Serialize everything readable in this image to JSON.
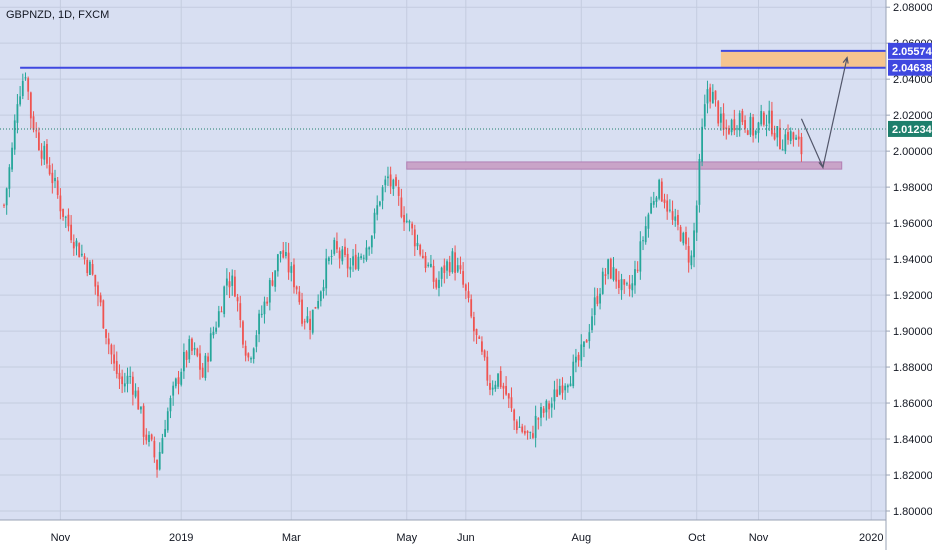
{
  "symbol_label": "GBPNZD, 1D, FXCM",
  "colors": {
    "background": "#d8dff2",
    "grid": "#c4ccdf",
    "up_candle": "#26a69a",
    "down_candle": "#ef5350",
    "resistance_line": "#3f48e0",
    "supply_zone": "#f5c48f",
    "support_zone": "#c9a4c8",
    "support_zone_border": "#b27fb4",
    "current_price_badge": "#1e7f6c",
    "level_badge": "#3f48e0",
    "projection": "#52566a"
  },
  "chart_data": {
    "type": "candlestick",
    "title": "GBPNZD, 1D, FXCM",
    "x_tick_labels": [
      "Nov",
      "2019",
      "Mar",
      "May",
      "Jun",
      "Aug",
      "Oct",
      "Nov",
      "2020"
    ],
    "y_tick_labels": [
      "1.80000",
      "1.82000",
      "1.84000",
      "1.86000",
      "1.88000",
      "1.90000",
      "1.92000",
      "1.94000",
      "1.96000",
      "1.98000",
      "2.00000",
      "2.02000",
      "2.04000",
      "2.06000",
      "2.08000"
    ],
    "ylim": [
      1.795,
      2.084
    ],
    "grid": true,
    "price_levels": [
      {
        "label": "2.05574",
        "value": 2.05574
      },
      {
        "label": "2.04638",
        "value": 2.04638
      },
      {
        "label": "2.01234",
        "value": 2.01234
      }
    ],
    "support_zone": [
      1.99,
      1.994
    ],
    "supply_zone": [
      2.04638,
      2.05574
    ],
    "close_path": [
      [
        0,
        1.97
      ],
      [
        3,
        2.0
      ],
      [
        5,
        2.03
      ],
      [
        8,
        2.045
      ],
      [
        10,
        2.02
      ],
      [
        13,
        2.005
      ],
      [
        17,
        1.99
      ],
      [
        21,
        1.97
      ],
      [
        25,
        1.955
      ],
      [
        28,
        1.945
      ],
      [
        32,
        1.935
      ],
      [
        35,
        1.92
      ],
      [
        38,
        1.9
      ],
      [
        41,
        1.88
      ],
      [
        44,
        1.87
      ],
      [
        47,
        1.875
      ],
      [
        50,
        1.86
      ],
      [
        52,
        1.845
      ],
      [
        55,
        1.835
      ],
      [
        57,
        1.825
      ],
      [
        60,
        1.85
      ],
      [
        63,
        1.865
      ],
      [
        66,
        1.88
      ],
      [
        69,
        1.89
      ],
      [
        72,
        1.885
      ],
      [
        74,
        1.875
      ],
      [
        77,
        1.895
      ],
      [
        80,
        1.91
      ],
      [
        83,
        1.93
      ],
      [
        86,
        1.925
      ],
      [
        88,
        1.905
      ],
      [
        91,
        1.885
      ],
      [
        94,
        1.9
      ],
      [
        97,
        1.915
      ],
      [
        100,
        1.93
      ],
      [
        103,
        1.945
      ],
      [
        106,
        1.935
      ],
      [
        109,
        1.925
      ],
      [
        111,
        1.91
      ],
      [
        114,
        1.905
      ],
      [
        117,
        1.92
      ],
      [
        120,
        1.935
      ],
      [
        123,
        1.945
      ],
      [
        126,
        1.94
      ],
      [
        129,
        1.935
      ],
      [
        131,
        1.94
      ],
      [
        134,
        1.945
      ],
      [
        137,
        1.955
      ],
      [
        140,
        1.975
      ],
      [
        143,
        1.985
      ],
      [
        146,
        1.975
      ],
      [
        149,
        1.965
      ],
      [
        152,
        1.955
      ],
      [
        155,
        1.945
      ],
      [
        158,
        1.935
      ],
      [
        161,
        1.925
      ],
      [
        164,
        1.935
      ],
      [
        167,
        1.94
      ],
      [
        170,
        1.93
      ],
      [
        172,
        1.92
      ],
      [
        175,
        1.9
      ],
      [
        178,
        1.885
      ],
      [
        181,
        1.87
      ],
      [
        184,
        1.875
      ],
      [
        187,
        1.865
      ],
      [
        190,
        1.85
      ],
      [
        193,
        1.845
      ],
      [
        196,
        1.84
      ],
      [
        198,
        1.85
      ],
      [
        201,
        1.855
      ],
      [
        204,
        1.86
      ],
      [
        207,
        1.87
      ],
      [
        210,
        1.875
      ],
      [
        213,
        1.88
      ],
      [
        216,
        1.89
      ],
      [
        219,
        1.91
      ],
      [
        222,
        1.925
      ],
      [
        225,
        1.935
      ],
      [
        228,
        1.93
      ],
      [
        231,
        1.92
      ],
      [
        234,
        1.925
      ],
      [
        237,
        1.945
      ],
      [
        240,
        1.965
      ],
      [
        243,
        1.98
      ],
      [
        246,
        1.975
      ],
      [
        249,
        1.96
      ],
      [
        252,
        1.955
      ],
      [
        254,
        1.945
      ],
      [
        256,
        1.94
      ],
      [
        258,
        1.97
      ],
      [
        260,
        2.01
      ],
      [
        262,
        2.035
      ],
      [
        264,
        2.03
      ],
      [
        266,
        2.02
      ],
      [
        268,
        2.01
      ],
      [
        271,
        2.015
      ],
      [
        274,
        2.02
      ],
      [
        277,
        2.015
      ],
      [
        280,
        2.01
      ],
      [
        283,
        2.02
      ],
      [
        286,
        2.015
      ],
      [
        289,
        2.005
      ],
      [
        292,
        2.01
      ],
      [
        295,
        2.005
      ],
      [
        297,
        2.0
      ]
    ],
    "projection_path": [
      [
        297,
        2.018
      ],
      [
        305,
        1.991
      ],
      [
        314,
        2.052
      ]
    ]
  }
}
